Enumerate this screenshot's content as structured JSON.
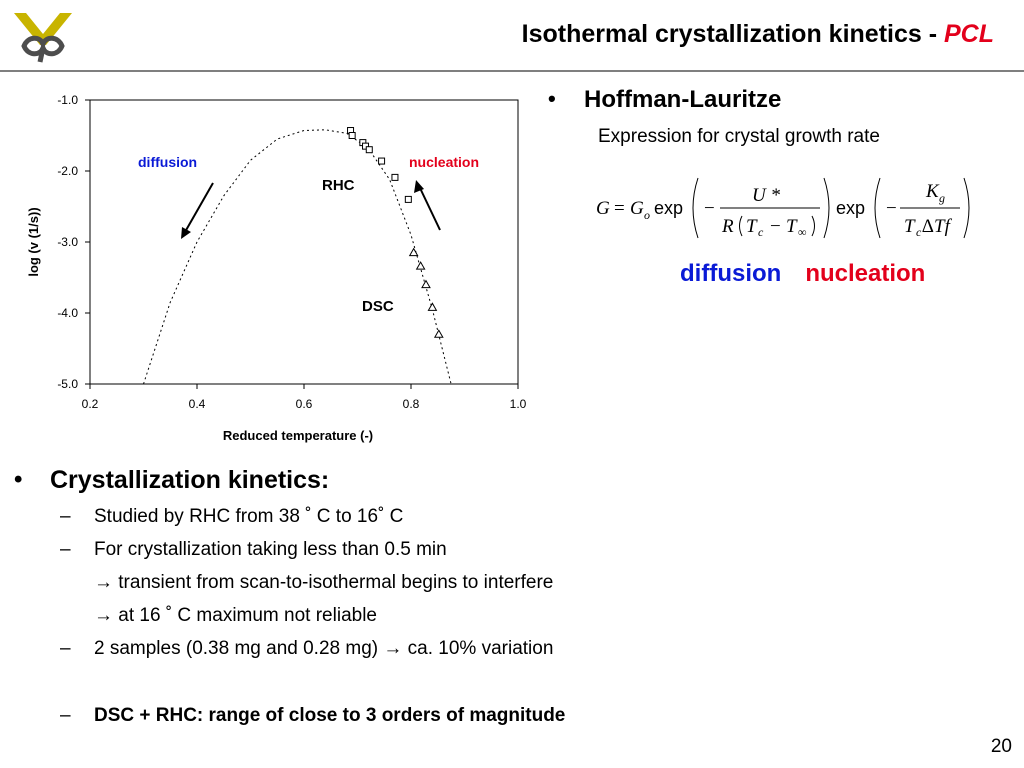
{
  "header": {
    "title_main": "Isothermal crystallization kinetics - ",
    "title_accent": "PCL",
    "colors": {
      "accent": "#e3001b",
      "logo_gold": "#c8b400",
      "logo_dark": "#4d4d4d",
      "rule": "#7f7f7f"
    }
  },
  "chart_data": {
    "type": "scatter",
    "title": "",
    "xlabel": "Reduced temperature (-)",
    "ylabel": "log (v (1/s))",
    "xlim": [
      0.2,
      1.0
    ],
    "ylim": [
      -5.0,
      -1.0
    ],
    "xticks": [
      "0.2",
      "0.4",
      "0.6",
      "0.8",
      "1.0"
    ],
    "yticks": [
      "-1.0",
      "-2.0",
      "-3.0",
      "-4.0",
      "-5.0"
    ],
    "grid": false,
    "series": [
      {
        "name": "RHC",
        "marker": "square",
        "x": [
          0.687,
          0.69,
          0.71,
          0.715,
          0.722,
          0.745,
          0.77,
          0.795
        ],
        "y": [
          -1.43,
          -1.5,
          -1.6,
          -1.65,
          -1.7,
          -1.86,
          -2.09,
          -2.4
        ]
      },
      {
        "name": "DSC",
        "marker": "triangle",
        "x": [
          0.805,
          0.818,
          0.828,
          0.84,
          0.852
        ],
        "y": [
          -3.15,
          -3.34,
          -3.6,
          -3.92,
          -4.3
        ]
      }
    ],
    "fit_curve": {
      "style": "dotted",
      "x": [
        0.3,
        0.35,
        0.4,
        0.45,
        0.5,
        0.55,
        0.6,
        0.64,
        0.68,
        0.72,
        0.76,
        0.8,
        0.84,
        0.875
      ],
      "y": [
        -5.0,
        -3.85,
        -3.0,
        -2.35,
        -1.85,
        -1.55,
        -1.43,
        -1.42,
        -1.47,
        -1.68,
        -2.12,
        -2.9,
        -3.95,
        -5.0
      ]
    },
    "annotations": [
      {
        "text": "diffusion",
        "color": "#0a1ad6"
      },
      {
        "text": "nucleation",
        "color": "#e3001b"
      },
      {
        "text": "RHC",
        "color": "#000000"
      },
      {
        "text": "DSC",
        "color": "#000000"
      }
    ]
  },
  "right": {
    "bullet": "•",
    "heading": "Hoffman-Lauritze",
    "subtitle": "Expression for crystal growth rate",
    "equation": {
      "G": "G",
      "eq": "=",
      "Go_main": "G",
      "Go_sub": "o",
      "exp": "exp",
      "minus": "−",
      "U": "U *",
      "R": "R",
      "Tc": "T",
      "c": "c",
      "Tinf": "T",
      "inf": "∞",
      "Kg": "K",
      "g": "g",
      "Tc2": "T",
      "c2": "c",
      "delta": "∆",
      "Tf": "Tf"
    },
    "label_diffusion": "diffusion",
    "label_nucleation": "nucleation"
  },
  "lower": {
    "bullet": "•",
    "heading": "Crystallization kinetics:",
    "lines": [
      {
        "dash": "–",
        "text": "Studied by RHC from 38 ˚ C to 16˚ C"
      },
      {
        "dash": "–",
        "text": "For crystallization taking less than 0.5 min"
      },
      {
        "dash": "",
        "text": "→ transient from scan-to-isothermal begins to interfere"
      },
      {
        "dash": "",
        "text": "→ at 16 ˚ C maximum not reliable"
      },
      {
        "dash": "–",
        "text": "2 samples (0.38 mg and 0.28 mg) → ca. 10% variation"
      },
      {
        "dash": "–",
        "text": "DSC + RHC: range of close to 3 orders of magnitude"
      }
    ]
  },
  "page_number": "20"
}
